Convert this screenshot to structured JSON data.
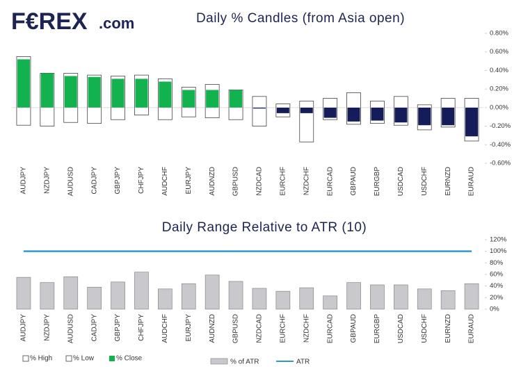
{
  "logo": "F€REX",
  "logo_suffix": ".com",
  "chart_data": [
    {
      "type": "candle",
      "title": "Daily % Candles (from Asia open)",
      "categories": [
        "AUDJPY",
        "NZDJPY",
        "AUDUSD",
        "CADJPY",
        "GBPJPY",
        "CHFJPY",
        "AUDCHF",
        "EURJPY",
        "AUDNZD",
        "GBPUSD",
        "NZDCAD",
        "EURCHF",
        "NZDCHF",
        "EURCAD",
        "GBPAUD",
        "EURGBP",
        "USDCAD",
        "USDCHF",
        "EURNZD",
        "EURAUD"
      ],
      "series": [
        {
          "name": "% High",
          "color": "#ffffff",
          "values": [
            0.55,
            0.37,
            0.37,
            0.35,
            0.34,
            0.35,
            0.31,
            0.22,
            0.25,
            0.19,
            0.12,
            0.04,
            0.07,
            0.1,
            0.16,
            0.07,
            0.12,
            0.03,
            0.1,
            0.1
          ]
        },
        {
          "name": "% Low",
          "color": "#ffffff",
          "values": [
            -0.19,
            -0.2,
            -0.16,
            -0.17,
            -0.13,
            -0.08,
            -0.13,
            -0.1,
            -0.11,
            -0.13,
            -0.2,
            -0.1,
            -0.37,
            -0.13,
            -0.18,
            -0.17,
            -0.19,
            -0.24,
            -0.21,
            -0.36
          ]
        },
        {
          "name": "% Close",
          "color": "#12b24f",
          "negative_color": "#141c5a",
          "values": [
            0.52,
            0.37,
            0.34,
            0.33,
            0.31,
            0.31,
            0.28,
            0.19,
            0.19,
            0.19,
            -0.01,
            -0.06,
            -0.06,
            -0.11,
            -0.15,
            -0.14,
            -0.16,
            -0.19,
            -0.19,
            -0.31
          ]
        }
      ],
      "ylim": [
        -0.6,
        0.8
      ],
      "yticks": [
        {
          "value": 0.8,
          "label": "0.80%"
        },
        {
          "value": 0.6,
          "label": "0.60%"
        },
        {
          "value": 0.4,
          "label": "0.40%"
        },
        {
          "value": 0.2,
          "label": "0.20%"
        },
        {
          "value": 0,
          "label": "0.00%"
        },
        {
          "value": -0.2,
          "label": "-0.20%"
        },
        {
          "value": -0.4,
          "label": "-0.40%"
        },
        {
          "value": -0.6,
          "label": "-0.60%"
        }
      ]
    },
    {
      "type": "bar_line",
      "title": "Daily Range Relative to ATR (10)",
      "categories": [
        "AUDJPY",
        "NZDJPY",
        "AUDUSD",
        "CADJPY",
        "GBPJPY",
        "CHFJPY",
        "AUDCHF",
        "EURJPY",
        "AUDNZD",
        "GBPUSD",
        "NZDCAD",
        "EURCHF",
        "NZDCHF",
        "EURCAD",
        "GBPAUD",
        "EURGBP",
        "USDCAD",
        "USDCHF",
        "EURNZD",
        "EURAUD"
      ],
      "series": [
        {
          "name": "% of ATR",
          "color": "#c9c9cd",
          "values": [
            55,
            46,
            56,
            38,
            47,
            64,
            35,
            44,
            59,
            48,
            36,
            31,
            37,
            23,
            46,
            42,
            42,
            35,
            32,
            44
          ]
        },
        {
          "name": "ATR",
          "color": "#2e97d4",
          "values": [
            100,
            100,
            100,
            100,
            100,
            100,
            100,
            100,
            100,
            100,
            100,
            100,
            100,
            100,
            100,
            100,
            100,
            100,
            100,
            100
          ]
        }
      ],
      "ylim": [
        0,
        120
      ],
      "yticks": [
        {
          "value": 120,
          "label": "120%"
        },
        {
          "value": 100,
          "label": "100%"
        },
        {
          "value": 80,
          "label": "80%"
        },
        {
          "value": 60,
          "label": "60%"
        },
        {
          "value": 40,
          "label": "40%"
        },
        {
          "value": 20,
          "label": "20%"
        },
        {
          "value": 0,
          "label": "0%"
        }
      ]
    }
  ]
}
